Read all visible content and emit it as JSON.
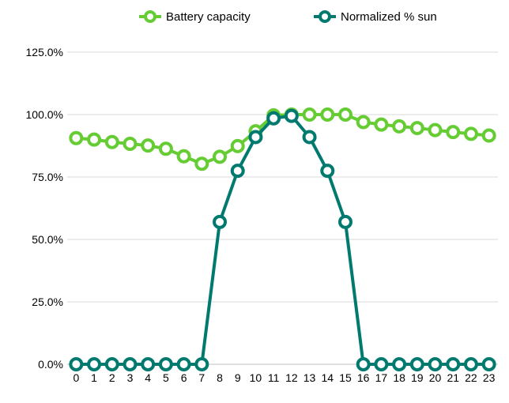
{
  "chart_data": {
    "type": "line",
    "categories": [
      "0",
      "1",
      "2",
      "3",
      "4",
      "5",
      "6",
      "7",
      "8",
      "9",
      "10",
      "11",
      "12",
      "13",
      "14",
      "15",
      "16",
      "17",
      "18",
      "19",
      "20",
      "21",
      "22",
      "23"
    ],
    "series": [
      {
        "name": "Battery capacity",
        "color": "#66CC33",
        "values": [
          90.6,
          90.0,
          89.0,
          88.3,
          87.6,
          86.3,
          83.3,
          80.3,
          83.1,
          87.4,
          93.3,
          99.7,
          100.0,
          100.0,
          100.0,
          100.0,
          97.0,
          96.0,
          95.3,
          94.6,
          93.8,
          93.0,
          92.3,
          91.6
        ]
      },
      {
        "name": "Normalized % sun",
        "color": "#007A6E",
        "values": [
          0,
          0,
          0,
          0,
          0,
          0,
          0,
          0,
          57.0,
          77.5,
          91.0,
          98.5,
          99.5,
          91.0,
          77.5,
          57.0,
          0,
          0,
          0,
          0,
          0,
          0,
          0,
          0
        ]
      }
    ],
    "yticks": [
      "0.0%",
      "25.0%",
      "50.0%",
      "75.0%",
      "100.0%",
      "125.0%"
    ],
    "ytick_values": [
      0,
      25,
      50,
      75,
      100,
      125
    ],
    "ylim": [
      0,
      125
    ],
    "grid": "horizontal",
    "legend_position": "top"
  }
}
